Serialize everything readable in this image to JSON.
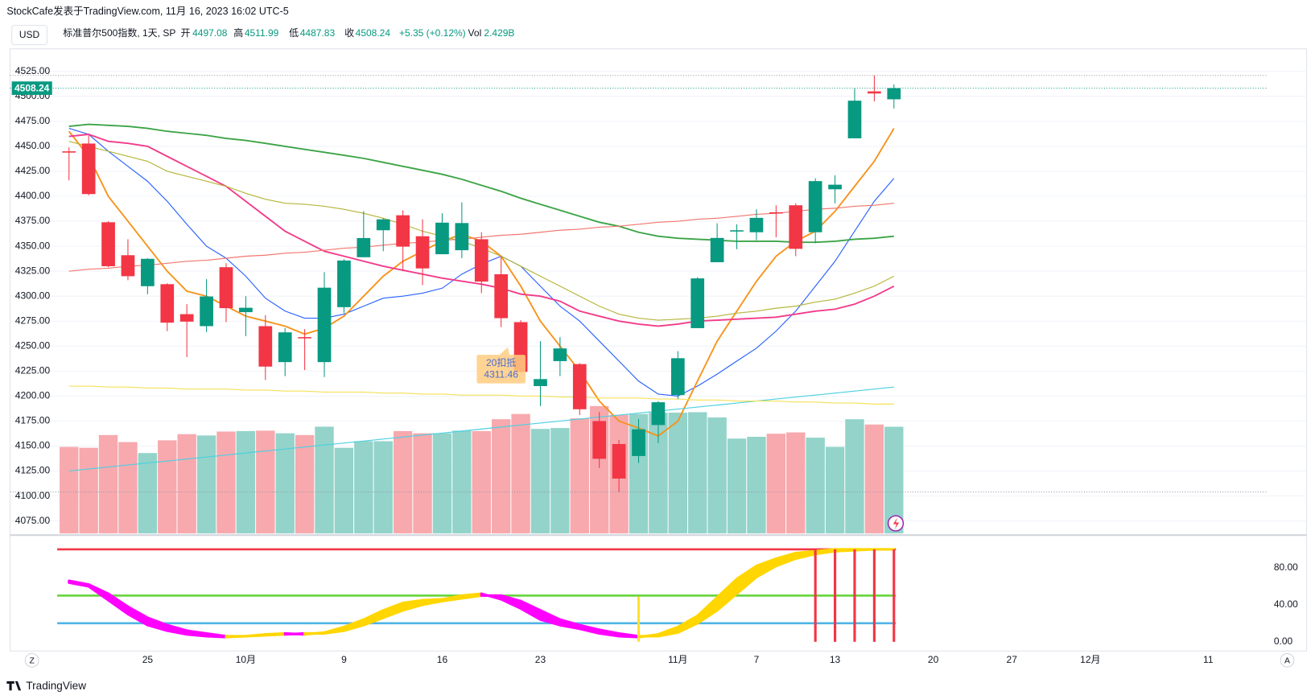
{
  "header": {
    "source": "StockCafe发表于TradingView.com, 11月 16, 2023 16:02 UTC-5",
    "currency": "USD",
    "symbol": "标准普尔500指数, 1天, SP",
    "open_label": "开",
    "open": 4497.08,
    "high_label": "高",
    "high": 4511.99,
    "low_label": "低",
    "low": 4487.83,
    "close_label": "收",
    "close": 4508.24,
    "change": "+5.35 (+0.12%)",
    "vol_label": "Vol",
    "vol": "2.429B",
    "logo": "TradingView",
    "left_button": "Z",
    "right_button": "A"
  },
  "chart_data": [
    {
      "type": "candlestick",
      "up_color": "#089981",
      "down_color": "#f23645",
      "volume_up_color": "#93d3ca",
      "volume_down_color": "#f7a9ae",
      "open": [
        4445,
        4452.8,
        4374,
        4341,
        4310,
        4312,
        4282,
        4270,
        4329,
        4284,
        4270,
        4234,
        4259,
        4234,
        4289,
        4339,
        4366,
        4381,
        4360,
        4342,
        4346,
        4357,
        4322,
        4274,
        4210,
        4235,
        4232,
        4175,
        4152,
        4140,
        4171,
        4201,
        4268,
        4334,
        4365,
        4364,
        4384,
        4391,
        4364,
        4407,
        4458,
        4505,
        4497.08
      ],
      "high": [
        4449,
        4461,
        4375,
        4357,
        4338,
        4313,
        4292,
        4317,
        4333,
        4300,
        4281,
        4268,
        4267,
        4324,
        4337,
        4385,
        4378,
        4386,
        4377,
        4383,
        4394,
        4364,
        4340,
        4276,
        4255,
        4259,
        4233,
        4184,
        4156,
        4177,
        4195,
        4245,
        4319,
        4373,
        4372,
        4387,
        4391,
        4393,
        4418,
        4421,
        4508,
        4521,
        4511.99
      ],
      "low": [
        4416,
        4401,
        4329,
        4316,
        4302,
        4265,
        4239,
        4264,
        4274,
        4260,
        4216,
        4220,
        4226,
        4219,
        4283,
        4339,
        4345,
        4325,
        4311,
        4342,
        4338,
        4303,
        4269,
        4223,
        4190,
        4220,
        4181,
        4128,
        4104,
        4133,
        4153,
        4197,
        4268,
        4334,
        4347,
        4356,
        4359,
        4340,
        4353,
        4393,
        4458,
        4495,
        4487.83
      ],
      "close": [
        4444,
        4402.2,
        4330,
        4320,
        4337.4,
        4273.5,
        4274.5,
        4299.7,
        4288,
        4288.4,
        4229.5,
        4263.8,
        4258.2,
        4308.5,
        4335.7,
        4358.2,
        4376.9,
        4349.6,
        4327.8,
        4373.6,
        4373.2,
        4314.6,
        4278,
        4224.2,
        4217,
        4247.7,
        4186.8,
        4137.2,
        4117.4,
        4166.8,
        4193.8,
        4237.9,
        4317.8,
        4358.3,
        4365.98,
        4378.4,
        4382.8,
        4347.4,
        4415.2,
        4411.6,
        4495.7,
        4502.9,
        4508.24
      ],
      "volume": [
        1.97,
        1.95,
        2.24,
        2.08,
        1.83,
        2.12,
        2.26,
        2.23,
        2.32,
        2.33,
        2.34,
        2.28,
        2.24,
        2.43,
        1.95,
        2.1,
        2.1,
        2.33,
        2.28,
        2.28,
        2.34,
        2.33,
        2.6,
        2.72,
        2.38,
        2.4,
        2.62,
        2.9,
        2.7,
        2.72,
        2.75,
        2.75,
        2.76,
        2.64,
        2.16,
        2.2,
        2.27,
        2.3,
        2.18,
        1.97,
        2.6,
        2.48,
        2.429
      ],
      "overlays": [
        {
          "color": "#2962ff",
          "values": [
            4468,
            4462,
            4445,
            4430,
            4415,
            4395,
            4372,
            4350,
            4338,
            4320,
            4298,
            4285,
            4278,
            4278,
            4282,
            4290,
            4298,
            4300,
            4303,
            4308,
            4322,
            4332,
            4340,
            4330,
            4310,
            4290,
            4275,
            4255,
            4235,
            4215,
            4202,
            4200,
            4210,
            4222,
            4235,
            4248,
            4265,
            4285,
            4310,
            4335,
            4365,
            4395,
            4418
          ]
        },
        {
          "color": "#f7931a",
          "values": [
            4465,
            4440,
            4400,
            4375,
            4350,
            4325,
            4305,
            4300,
            4290,
            4280,
            4275,
            4270,
            4262,
            4268,
            4280,
            4300,
            4320,
            4335,
            4345,
            4355,
            4362,
            4355,
            4340,
            4310,
            4275,
            4250,
            4225,
            4195,
            4175,
            4168,
            4160,
            4175,
            4215,
            4255,
            4285,
            4315,
            4340,
            4355,
            4365,
            4385,
            4410,
            4435,
            4468
          ]
        },
        {
          "color": "#f23b8a",
          "values": [
            4460,
            4462,
            4455,
            4453,
            4450,
            4440,
            4430,
            4420,
            4410,
            4395,
            4380,
            4365,
            4355,
            4345,
            4340,
            4335,
            4330,
            4326,
            4322,
            4318,
            4315,
            4312,
            4308,
            4302,
            4300,
            4295,
            4285,
            4280,
            4275,
            4272,
            4270,
            4272,
            4275,
            4276,
            4277,
            4278,
            4279,
            4282,
            4285,
            4287,
            4292,
            4300,
            4310
          ]
        },
        {
          "color": "#b5b53a",
          "values": [
            4455,
            4450,
            4445,
            4440,
            4435,
            4425,
            4420,
            4415,
            4410,
            4403,
            4397,
            4393,
            4392,
            4390,
            4387,
            4383,
            4378,
            4372,
            4365,
            4360,
            4355,
            4348,
            4340,
            4330,
            4320,
            4310,
            4300,
            4290,
            4282,
            4278,
            4276,
            4277,
            4278,
            4280,
            4283,
            4285,
            4288,
            4290,
            4294,
            4297,
            4303,
            4310,
            4320
          ]
        },
        {
          "color": "#3ca447",
          "values": [
            4470,
            4472,
            4471,
            4470,
            4468,
            4465,
            4463,
            4461,
            4458,
            4456,
            4453,
            4450,
            4447,
            4444,
            4441,
            4438,
            4434,
            4430,
            4426,
            4422,
            4417,
            4411,
            4405,
            4398,
            4392,
            4386,
            4380,
            4374,
            4370,
            4364,
            4360,
            4358,
            4357,
            4356,
            4355,
            4355,
            4355,
            4354,
            4354,
            4355,
            4357,
            4358,
            4360
          ]
        },
        {
          "color": "#f2766e",
          "values": [
            4325,
            4327,
            4328,
            4330,
            4331,
            4333,
            4335,
            4336,
            4338,
            4340,
            4341,
            4343,
            4344,
            4346,
            4348,
            4349,
            4351,
            4353,
            4354,
            4356,
            4357,
            4359,
            4361,
            4362,
            4364,
            4366,
            4367,
            4369,
            4370,
            4372,
            4374,
            4375,
            4377,
            4378,
            4380,
            4382,
            4383,
            4385,
            4387,
            4388,
            4390,
            4391,
            4393
          ]
        },
        {
          "color": "#4dd0e1",
          "values": [
            4125,
            4127,
            4129,
            4131,
            4133,
            4135,
            4137,
            4139,
            4141,
            4143,
            4145,
            4147,
            4149,
            4151,
            4153,
            4155,
            4157,
            4159,
            4161,
            4163,
            4165,
            4167,
            4169,
            4171,
            4173,
            4175,
            4177,
            4179,
            4181,
            4183,
            4185,
            4187,
            4189,
            4191,
            4193,
            4195,
            4197,
            4199,
            4201,
            4203,
            4205,
            4207,
            4209
          ]
        },
        {
          "color": "#f5e05a",
          "values": [
            4210,
            4210,
            4209,
            4209,
            4208,
            4208,
            4207,
            4207,
            4207,
            4206,
            4206,
            4205,
            4205,
            4204,
            4204,
            4204,
            4203,
            4203,
            4202,
            4202,
            4201,
            4201,
            4201,
            4200,
            4200,
            4199,
            4199,
            4198,
            4198,
            4198,
            4197,
            4197,
            4196,
            4196,
            4195,
            4195,
            4195,
            4194,
            4194,
            4193,
            4193,
            4192,
            4192
          ]
        }
      ],
      "annotation": {
        "label": "20扣抵",
        "value": 4311.46,
        "at": 22
      },
      "xlim": [
        -3,
        61
      ],
      "ylim": [
        4062.5,
        4547.6
      ],
      "yticks": [
        {
          "value": 4075,
          "label": "4075.00"
        },
        {
          "value": 4100,
          "label": "4100.00"
        },
        {
          "value": 4125,
          "label": "4125.00"
        },
        {
          "value": 4150,
          "label": "4150.00"
        },
        {
          "value": 4175,
          "label": "4175.00"
        },
        {
          "value": 4200,
          "label": "4200.00"
        },
        {
          "value": 4225,
          "label": "4225.00"
        },
        {
          "value": 4250,
          "label": "4250.00"
        },
        {
          "value": 4275,
          "label": "4275.00"
        },
        {
          "value": 4300,
          "label": "4300.00"
        },
        {
          "value": 4325,
          "label": "4325.00"
        },
        {
          "value": 4350,
          "label": "4350.00"
        },
        {
          "value": 4375,
          "label": "4375.00"
        },
        {
          "value": 4400,
          "label": "4400.00"
        },
        {
          "value": 4425,
          "label": "4425.00"
        },
        {
          "value": 4450,
          "label": "4450.00"
        },
        {
          "value": 4475,
          "label": "4475.00"
        },
        {
          "value": 4500,
          "label": "4500.00"
        },
        {
          "value": 4525,
          "label": "4525.00"
        }
      ],
      "xticks": [
        {
          "value": 4,
          "label": "25"
        },
        {
          "value": 9,
          "label": "10月"
        },
        {
          "value": 14,
          "label": "9"
        },
        {
          "value": 19,
          "label": "16"
        },
        {
          "value": 24,
          "label": "23"
        },
        {
          "value": 31,
          "label": "11月"
        },
        {
          "value": 35,
          "label": "7"
        },
        {
          "value": 39,
          "label": "13"
        },
        {
          "value": 44,
          "label": "20"
        },
        {
          "value": 48,
          "label": "27"
        },
        {
          "value": 52,
          "label": "12月"
        },
        {
          "value": 58,
          "label": "11"
        }
      ],
      "grid": true
    },
    {
      "type": "oscillator",
      "rising_color": "#ffd600",
      "falling_color": "#ff00ff",
      "fast": [
        64,
        60,
        45,
        30,
        18,
        12,
        8,
        6,
        5,
        6,
        8,
        9,
        8,
        10,
        16,
        24,
        34,
        42,
        45,
        46,
        50,
        52,
        46,
        36,
        24,
        18,
        14,
        9,
        6,
        5,
        8,
        16,
        28,
        48,
        68,
        82,
        90,
        96,
        98,
        100,
        100,
        100,
        100
      ],
      "slow": [
        66,
        62,
        52,
        38,
        26,
        18,
        12,
        9,
        6,
        6,
        7,
        8,
        9,
        9,
        12,
        18,
        26,
        34,
        40,
        44,
        47,
        50,
        50,
        44,
        34,
        24,
        18,
        13,
        9,
        6,
        6,
        10,
        20,
        34,
        52,
        70,
        82,
        90,
        95,
        98,
        99,
        100,
        100
      ],
      "levels": [
        {
          "value": 100,
          "color": "#f23645"
        },
        {
          "value": 50,
          "color": "#66d43a"
        },
        {
          "value": 20,
          "color": "#4fb4e6"
        }
      ],
      "buy_signals": [
        29
      ],
      "buy_color": "#ffe030",
      "sell_signals": [
        38,
        39,
        40,
        41,
        42
      ],
      "sell_color": "#f23645",
      "ylim": [
        -10,
        112.7
      ],
      "yticks": [
        {
          "value": 0,
          "label": "0.00"
        },
        {
          "value": 40,
          "label": "40.00"
        },
        {
          "value": 80,
          "label": "80.00"
        }
      ]
    }
  ]
}
